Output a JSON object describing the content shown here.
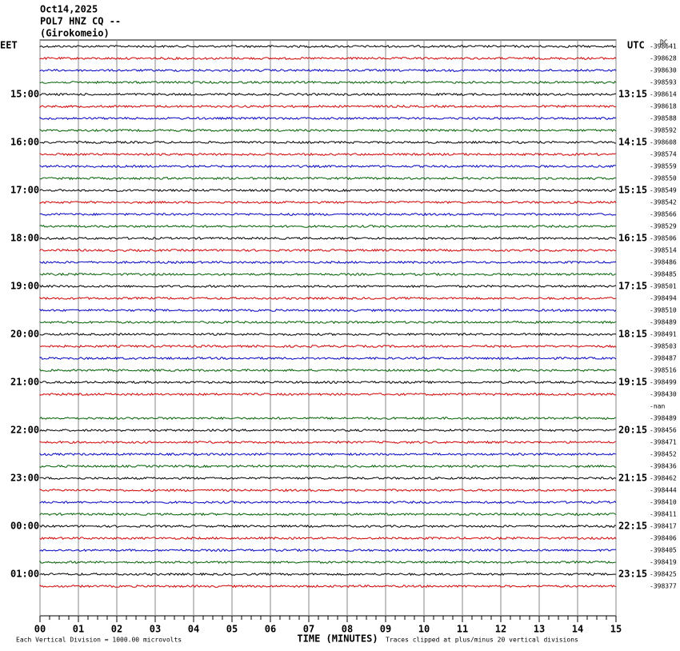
{
  "header": {
    "date": "Oct14,2025",
    "station": "POL7 HNZ CQ --",
    "location": "(Girokomeio)"
  },
  "left_axis": {
    "title": "EET",
    "labels": [
      "15:00",
      "16:00",
      "17:00",
      "18:00",
      "19:00",
      "20:00",
      "21:00",
      "22:00",
      "23:00",
      "00:00",
      "01:00"
    ]
  },
  "right_axis": {
    "title": "UTC",
    "labels": [
      "13:15",
      "14:15",
      "15:15",
      "16:15",
      "17:15",
      "18:15",
      "19:15",
      "20:15",
      "21:15",
      "22:15",
      "23:15"
    ]
  },
  "dc_label": "DC",
  "trace_offsets": [
    "-398641",
    "-398628",
    "-398630",
    "-398593",
    "-398614",
    "-398618",
    "-398588",
    "-398592",
    "-398608",
    "-398574",
    "-398559",
    "-398550",
    "-398549",
    "-398542",
    "-398566",
    "-398529",
    "-398506",
    "-398514",
    "-398486",
    "-398485",
    "-398501",
    "-398494",
    "-398510",
    "-398489",
    "-398491",
    "-398503",
    "-398487",
    "-398516",
    "-398499",
    "-398430",
    "-nan",
    "-398489",
    "-398456",
    "-398471",
    "-398452",
    "-398436",
    "-398462",
    "-398444",
    "-398410",
    "-398411",
    "-398417",
    "-398406",
    "-398405",
    "-398419",
    "-398425",
    "-398377"
  ],
  "x_axis": {
    "title": "TIME (MINUTES)",
    "ticks": [
      "00",
      "01",
      "02",
      "03",
      "04",
      "05",
      "06",
      "07",
      "08",
      "09",
      "10",
      "11",
      "12",
      "13",
      "14",
      "15"
    ]
  },
  "footer": {
    "scale": "Each Vertical Division = 1000.00 microvolts",
    "clip": "Traces clipped at plus/minus 20 vertical divisions"
  }
}
